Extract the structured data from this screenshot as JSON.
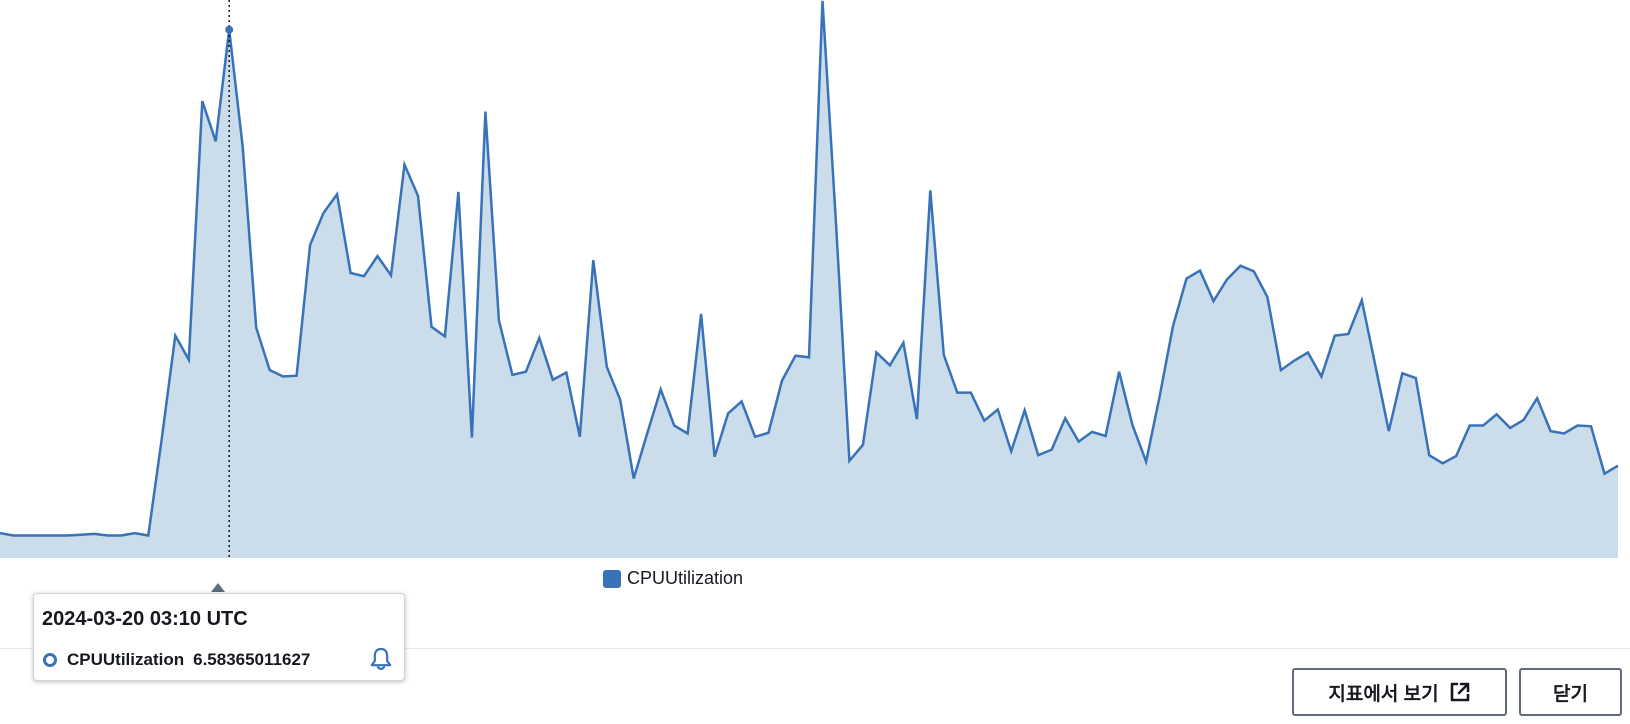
{
  "colors": {
    "series_line": "#3872b8",
    "series_fill": "#cbdcea",
    "text": "#16191f",
    "button_border": "#5f6b7a"
  },
  "chart_data": {
    "type": "area",
    "series": [
      {
        "name": "CPUUtilization",
        "values": [
          0.31,
          0.28,
          0.28,
          0.28,
          0.28,
          0.28,
          0.29,
          0.3,
          0.28,
          0.28,
          0.31,
          0.28,
          1.49,
          2.77,
          2.47,
          5.69,
          5.19,
          6.58,
          5.12,
          2.87,
          2.34,
          2.26,
          2.27,
          3.9,
          4.3,
          4.53,
          3.55,
          3.51,
          3.76,
          3.52,
          4.9,
          4.51,
          2.88,
          2.76,
          4.56,
          1.5,
          5.56,
          2.96,
          2.28,
          2.32,
          2.74,
          2.22,
          2.31,
          1.51,
          3.71,
          2.38,
          1.97,
          0.99,
          1.55,
          2.1,
          1.65,
          1.55,
          3.04,
          1.26,
          1.8,
          1.95,
          1.51,
          1.56,
          2.21,
          2.52,
          2.5,
          6.94,
          4.17,
          1.21,
          1.41,
          2.56,
          2.4,
          2.68,
          1.73,
          4.58,
          2.53,
          2.06,
          2.06,
          1.71,
          1.85,
          1.33,
          1.84,
          1.28,
          1.35,
          1.74,
          1.45,
          1.57,
          1.52,
          2.32,
          1.65,
          1.2,
          2.01,
          2.89,
          3.48,
          3.58,
          3.2,
          3.47,
          3.64,
          3.57,
          3.25,
          2.34,
          2.46,
          2.56,
          2.26,
          2.77,
          2.79,
          3.21,
          2.4,
          1.58,
          2.3,
          2.24,
          1.28,
          1.18,
          1.27,
          1.65,
          1.65,
          1.79,
          1.62,
          1.72,
          1.99,
          1.58,
          1.55,
          1.65,
          1.64,
          1.05,
          1.15
        ]
      }
    ],
    "ylim": [
      0,
      6.85
    ],
    "grid": false,
    "legend": "bottom-center",
    "highlight_index": 17
  },
  "legend": {
    "label": "CPUUtilization"
  },
  "tooltip": {
    "timestamp": "2024-03-20 03:10 UTC",
    "metric": "CPUUtilization",
    "value": "6.58365011627",
    "icon": "bell-icon"
  },
  "footer": {
    "view_in_metrics_label": "지표에서 보기",
    "view_in_metrics_icon": "external-link-icon",
    "close_label": "닫기"
  }
}
